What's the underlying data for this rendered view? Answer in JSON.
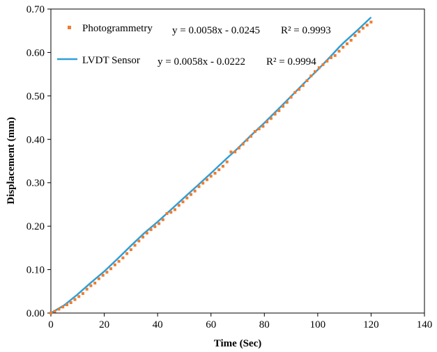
{
  "chart_data": {
    "type": "line",
    "xlabel": "Time (Sec)",
    "ylabel": "Displacement (mm)",
    "xlim": [
      0,
      140
    ],
    "ylim": [
      0,
      0.7
    ],
    "x_ticks": [
      "0",
      "20",
      "40",
      "60",
      "80",
      "100",
      "120",
      "140"
    ],
    "y_ticks": [
      "0.00",
      "0.10",
      "0.20",
      "0.30",
      "0.40",
      "0.50",
      "0.60",
      "0.70"
    ],
    "grid": false,
    "legend_position": "top-left",
    "series": [
      {
        "name": "Photogrammetry",
        "marker": "square",
        "color": "#ED7D31",
        "equation": "y = 0.0058x - 0.0245",
        "r2": "R² = 0.9993",
        "x": [
          0,
          1.5,
          3,
          4.5,
          6,
          7.5,
          9,
          10.5,
          12,
          13.5,
          15,
          16.5,
          18,
          19.5,
          21,
          22.5,
          24,
          25.5,
          27,
          28.5,
          30,
          31.5,
          33,
          34.5,
          36,
          37.5,
          39,
          40.5,
          42,
          43.5,
          45,
          46.5,
          48,
          49.5,
          51,
          52.5,
          54,
          55.5,
          57,
          58.5,
          60,
          61.5,
          63,
          64.5,
          66,
          67.5,
          69,
          70.5,
          72,
          73.5,
          75,
          76.5,
          78,
          79.5,
          81,
          82.5,
          84,
          85.5,
          87,
          88.5,
          90,
          91.5,
          93,
          94.5,
          96,
          97.5,
          99,
          100.5,
          102,
          103.5,
          105,
          106.5,
          108,
          109.5,
          111,
          112.5,
          114,
          115.5,
          117,
          118.5,
          120
        ],
        "y": [
          0.0,
          0.004,
          0.009,
          0.014,
          0.019,
          0.024,
          0.031,
          0.038,
          0.045,
          0.055,
          0.063,
          0.069,
          0.079,
          0.087,
          0.094,
          0.102,
          0.111,
          0.119,
          0.127,
          0.137,
          0.146,
          0.156,
          0.166,
          0.175,
          0.184,
          0.192,
          0.199,
          0.206,
          0.215,
          0.229,
          0.232,
          0.238,
          0.248,
          0.256,
          0.265,
          0.273,
          0.281,
          0.291,
          0.299,
          0.307,
          0.315,
          0.322,
          0.33,
          0.338,
          0.348,
          0.371,
          0.371,
          0.38,
          0.389,
          0.398,
          0.407,
          0.418,
          0.424,
          0.43,
          0.44,
          0.448,
          0.458,
          0.466,
          0.476,
          0.485,
          0.497,
          0.508,
          0.515,
          0.524,
          0.535,
          0.546,
          0.556,
          0.565,
          0.572,
          0.58,
          0.588,
          0.593,
          0.603,
          0.612,
          0.62,
          0.628,
          0.639,
          0.648,
          0.656,
          0.663,
          0.67
        ]
      },
      {
        "name": "LVDT Sensor",
        "marker": "none",
        "color": "#2E9FD8",
        "equation": "y = 0.0058x - 0.0222",
        "r2": "R² = 0.9994",
        "x": [
          0,
          5,
          10,
          15,
          20,
          25,
          30,
          35,
          40,
          45,
          50,
          55,
          60,
          65,
          70,
          75,
          80,
          85,
          90,
          95,
          100,
          105,
          108,
          110,
          115,
          120
        ],
        "y": [
          0.0,
          0.018,
          0.043,
          0.07,
          0.096,
          0.125,
          0.155,
          0.184,
          0.21,
          0.238,
          0.266,
          0.294,
          0.322,
          0.351,
          0.379,
          0.409,
          0.438,
          0.468,
          0.499,
          0.53,
          0.56,
          0.592,
          0.612,
          0.624,
          0.652,
          0.681
        ]
      }
    ]
  }
}
